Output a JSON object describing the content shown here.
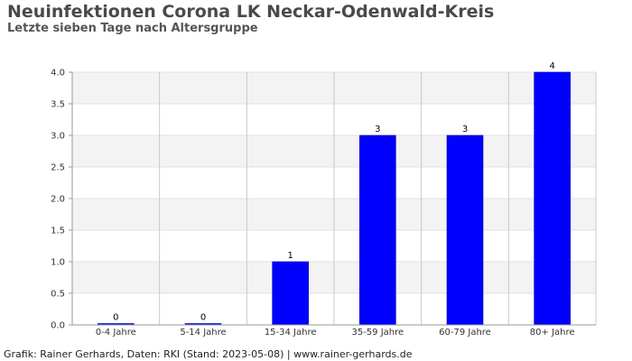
{
  "chart_data": {
    "type": "bar",
    "title": "Neuinfektionen Corona LK Neckar-Odenwald-Kreis",
    "subtitle": "Letzte sieben Tage nach Altersgruppe",
    "categories": [
      "0-4 Jahre",
      "5-14 Jahre",
      "15-34 Jahre",
      "35-59 Jahre",
      "60-79 Jahre",
      "80+ Jahre"
    ],
    "values": [
      0,
      0,
      1,
      3,
      3,
      4
    ],
    "data_labels": [
      "0",
      "0",
      "1",
      "3",
      "3",
      "4"
    ],
    "ylim": [
      0,
      4
    ],
    "yticks": [
      "0.0",
      "0.5",
      "1.0",
      "1.5",
      "2.0",
      "2.5",
      "3.0",
      "3.5",
      "4.0"
    ],
    "xlabel": "",
    "ylabel": "",
    "grid": true,
    "bar_color": "#0000ff",
    "band_color": "#f3f3f3"
  },
  "footer": "Grafik: Rainer Gerhards, Daten: RKI (Stand: 2023-05-08) | www.rainer-gerhards.de"
}
